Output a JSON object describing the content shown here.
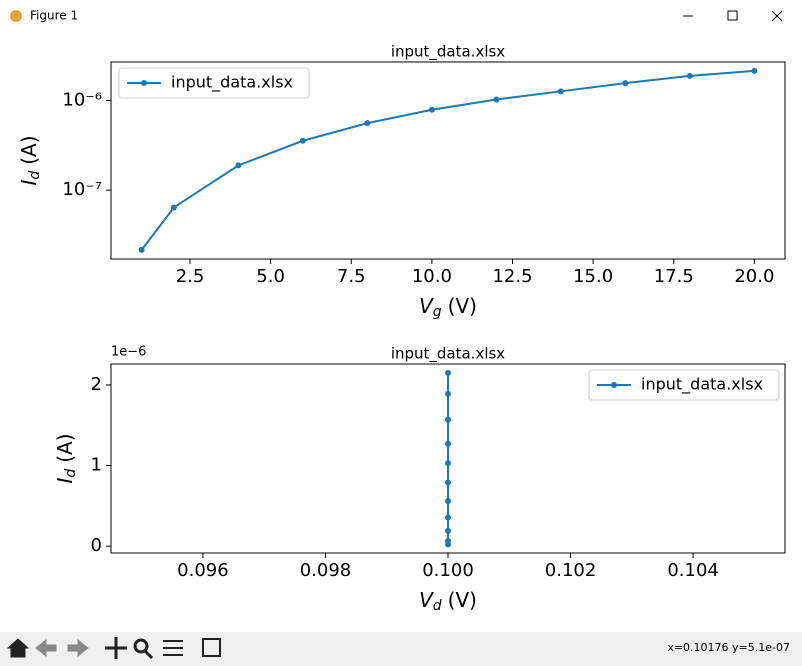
{
  "window": {
    "title": "Figure 1"
  },
  "status": "x=0.10176 y=5.1e-07",
  "chart_data": [
    {
      "type": "line",
      "title": "input_data.xlsx",
      "xlabel": [
        "V",
        "g",
        "(V)"
      ],
      "ylabel": [
        "I",
        "d",
        "(A)"
      ],
      "x": [
        1,
        2,
        4,
        6,
        8,
        10,
        12,
        14,
        16,
        18,
        20
      ],
      "series": [
        {
          "name": "input_data.xlsx",
          "color": "#1f77b4",
          "values": [
            2.15e-08,
            6.4e-08,
            1.89e-07,
            3.56e-07,
            5.6e-07,
            7.9e-07,
            1.03e-06,
            1.27e-06,
            1.57e-06,
            1.89e-06,
            2.15e-06
          ]
        }
      ],
      "xlim": [
        0.05,
        20.95
      ],
      "xticks": [
        2.5,
        {
          "value": 5,
          "label": "5.0"
        },
        7.5,
        {
          "value": 10,
          "label": "10.0"
        },
        12.5,
        {
          "value": 15,
          "label": "15.0"
        },
        17.5,
        {
          "value": 20,
          "label": "20.0"
        }
      ],
      "ylim": [
        1.7e-08,
        2.7e-06
      ],
      "yscale": "log",
      "yticks": [
        {
          "value": 1e-07,
          "label": "10⁻⁷"
        },
        {
          "value": 1e-06,
          "label": "10⁻⁶"
        }
      ],
      "legend": "upper left"
    },
    {
      "type": "line",
      "title": "input_data.xlsx",
      "xlabel": [
        "V",
        "d",
        "(V)"
      ],
      "ylabel": [
        "I",
        "d",
        "(A)"
      ],
      "x": [
        0.1,
        0.1,
        0.1,
        0.1,
        0.1,
        0.1,
        0.1,
        0.1,
        0.1,
        0.1,
        0.1
      ],
      "series": [
        {
          "name": "input_data.xlsx",
          "color": "#1f77b4",
          "values": [
            2.15e-08,
            6.4e-08,
            1.89e-07,
            3.56e-07,
            5.6e-07,
            7.9e-07,
            1.03e-06,
            1.27e-06,
            1.57e-06,
            1.89e-06,
            2.15e-06
          ]
        }
      ],
      "xlim": [
        0.0945,
        0.1055
      ],
      "xticks": [
        {
          "value": 0.096,
          "label": "0.096"
        },
        {
          "value": 0.098,
          "label": "0.098"
        },
        {
          "value": 0.1,
          "label": "0.100"
        },
        {
          "value": 0.102,
          "label": "0.102"
        },
        {
          "value": 0.104,
          "label": "0.104"
        }
      ],
      "ylim": [
        -8.5e-08,
        2.26e-06
      ],
      "yscale": "linear",
      "yticks": [
        {
          "value": 0,
          "label": "0"
        },
        {
          "value": 1e-06,
          "label": "1"
        },
        {
          "value": 2e-06,
          "label": "2"
        }
      ],
      "y_offset_label": "1e−6",
      "legend": "upper right"
    }
  ]
}
